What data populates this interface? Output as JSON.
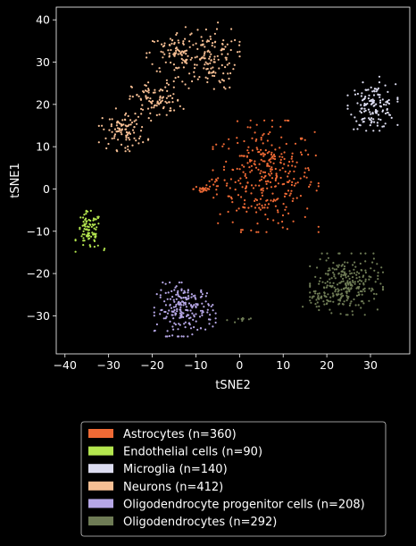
{
  "chart_data": {
    "type": "scatter",
    "title": "",
    "xlabel": "tSNE2",
    "ylabel": "tSNE1",
    "xlim": [
      -42,
      39
    ],
    "ylim": [
      -39,
      43
    ],
    "x_ticks": [
      -40,
      -30,
      -20,
      -10,
      0,
      10,
      20,
      30
    ],
    "y_ticks": [
      -30,
      -20,
      -10,
      0,
      10,
      20,
      30,
      40
    ],
    "grid": false,
    "legend_position": "below",
    "background": "#000000",
    "series": [
      {
        "name": "Astrocytes (n=360)",
        "color": "#f06a35",
        "count": 360,
        "clusters": [
          {
            "cx": 6,
            "cy": 3,
            "sx": 5.5,
            "sy": 6,
            "n": 330
          },
          {
            "cx": -6.5,
            "cy": 1,
            "sx": 1.2,
            "sy": 1.2,
            "n": 12
          },
          {
            "cx": -8.5,
            "cy": 0,
            "sx": 1.0,
            "sy": 0.6,
            "n": 18
          }
        ]
      },
      {
        "name": "Endothelial cells (n=90)",
        "color": "#b4e64f",
        "count": 90,
        "clusters": [
          {
            "cx": -34.5,
            "cy": -10,
            "sx": 1.4,
            "sy": 2.2,
            "n": 88
          },
          {
            "cx": -31,
            "cy": -14.5,
            "sx": 0.3,
            "sy": 0.3,
            "n": 2
          }
        ]
      },
      {
        "name": "Microglia (n=140)",
        "color": "#dcdcf0",
        "count": 140,
        "clusters": [
          {
            "cx": 30.5,
            "cy": 19.5,
            "sx": 2.6,
            "sy": 2.6,
            "n": 139
          },
          {
            "cx": 32,
            "cy": 26.5,
            "sx": 0.1,
            "sy": 0.1,
            "n": 1
          }
        ]
      },
      {
        "name": "Neurons (n=412)",
        "color": "#f7bf94",
        "count": 412,
        "clusters": [
          {
            "cx": -14,
            "cy": 32,
            "sx": 3.5,
            "sy": 2.6,
            "n": 90
          },
          {
            "cx": -7,
            "cy": 31,
            "sx": 3.2,
            "sy": 3.8,
            "n": 130
          },
          {
            "cx": -19,
            "cy": 21,
            "sx": 2.8,
            "sy": 2.2,
            "n": 90
          },
          {
            "cx": -26.5,
            "cy": 14,
            "sx": 2.6,
            "sy": 2.3,
            "n": 102
          }
        ]
      },
      {
        "name": "Oligodendrocyte progenitor cells (n=208)",
        "color": "#b6a7e6",
        "count": 208,
        "clusters": [
          {
            "cx": -12.5,
            "cy": -28.5,
            "sx": 3.2,
            "sy": 2.9,
            "n": 208
          }
        ]
      },
      {
        "name": "Oligodendrocytes (n=292)",
        "color": "#6e7b55",
        "count": 292,
        "clusters": [
          {
            "cx": 24.5,
            "cy": -22.5,
            "sx": 3.8,
            "sy": 3.3,
            "n": 250
          },
          {
            "cx": 18,
            "cy": -26,
            "sx": 1.6,
            "sy": 1.2,
            "n": 32
          },
          {
            "cx": 0,
            "cy": -31,
            "sx": 1.3,
            "sy": 0.3,
            "n": 10
          }
        ]
      }
    ]
  }
}
